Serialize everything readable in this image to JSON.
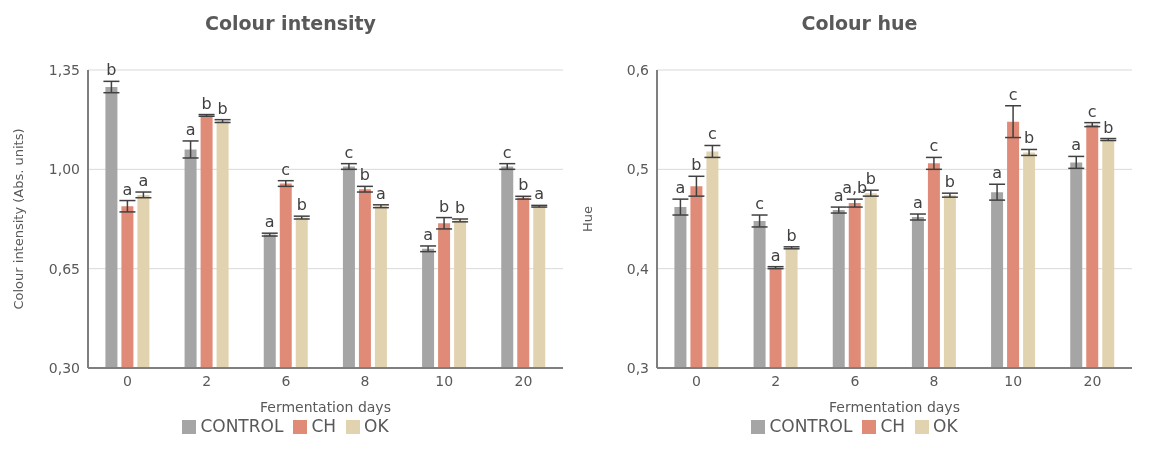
{
  "chart_data": [
    {
      "type": "bar",
      "title": "Colour intensity",
      "xlabel": "Fermentation days",
      "ylabel": "Colour intensity (Abs. units)",
      "categories": [
        "0",
        "2",
        "6",
        "8",
        "10",
        "20"
      ],
      "ylim": [
        0.3,
        1.35
      ],
      "yticks": [
        {
          "value": 0.3,
          "label": "0,30"
        },
        {
          "value": 0.65,
          "label": "0,65"
        },
        {
          "value": 1.0,
          "label": "1,00"
        },
        {
          "value": 1.35,
          "label": "1,35"
        }
      ],
      "grid": "y",
      "legend": "bottom",
      "series": [
        {
          "name": "CONTROL",
          "color": "#a5a5a5",
          "values": [
            1.29,
            1.07,
            0.77,
            1.01,
            0.72,
            1.01
          ],
          "errors": [
            0.02,
            0.03,
            0.005,
            0.01,
            0.01,
            0.01
          ],
          "value_labels": [
            "b",
            "a",
            "a",
            "c",
            "a",
            "c"
          ]
        },
        {
          "name": "CH",
          "color": "#e08b78",
          "values": [
            0.87,
            1.19,
            0.95,
            0.93,
            0.81,
            0.9
          ],
          "errors": [
            0.02,
            0.003,
            0.01,
            0.01,
            0.02,
            0.005
          ],
          "value_labels": [
            "a",
            "b",
            "c",
            "b",
            "b",
            "b"
          ]
        },
        {
          "name": "OK",
          "color": "#e2d3b0",
          "values": [
            0.91,
            1.17,
            0.83,
            0.87,
            0.82,
            0.87
          ],
          "errors": [
            0.01,
            0.005,
            0.005,
            0.005,
            0.005,
            0.003
          ],
          "value_labels": [
            "a",
            "b",
            "b",
            "a",
            "b",
            "a"
          ]
        }
      ]
    },
    {
      "type": "bar",
      "title": "Colour hue",
      "xlabel": "Fermentation days",
      "ylabel": "Hue",
      "categories": [
        "0",
        "2",
        "6",
        "8",
        "10",
        "20"
      ],
      "ylim": [
        0.3,
        0.6
      ],
      "yticks": [
        {
          "value": 0.3,
          "label": "0,3"
        },
        {
          "value": 0.4,
          "label": "0,4"
        },
        {
          "value": 0.5,
          "label": "0,5"
        },
        {
          "value": 0.6,
          "label": "0,6"
        }
      ],
      "grid": "y",
      "legend": "bottom",
      "series": [
        {
          "name": "CONTROL",
          "color": "#a5a5a5",
          "values": [
            0.462,
            0.448,
            0.459,
            0.452,
            0.477,
            0.507
          ],
          "errors": [
            0.008,
            0.006,
            0.003,
            0.003,
            0.008,
            0.006
          ],
          "value_labels": [
            "a",
            "c",
            "a",
            "a",
            "a",
            "a"
          ]
        },
        {
          "name": "CH",
          "color": "#e08b78",
          "values": [
            0.483,
            0.401,
            0.466,
            0.506,
            0.548,
            0.545
          ],
          "errors": [
            0.01,
            0.001,
            0.004,
            0.006,
            0.016,
            0.002
          ],
          "value_labels": [
            "b",
            "a",
            "a,b",
            "c",
            "c",
            "c"
          ]
        },
        {
          "name": "OK",
          "color": "#e2d3b0",
          "values": [
            0.518,
            0.421,
            0.476,
            0.474,
            0.517,
            0.53
          ],
          "errors": [
            0.006,
            0.001,
            0.003,
            0.002,
            0.003,
            0.001
          ],
          "value_labels": [
            "c",
            "b",
            "b",
            "b",
            "b",
            "b"
          ]
        }
      ]
    }
  ]
}
